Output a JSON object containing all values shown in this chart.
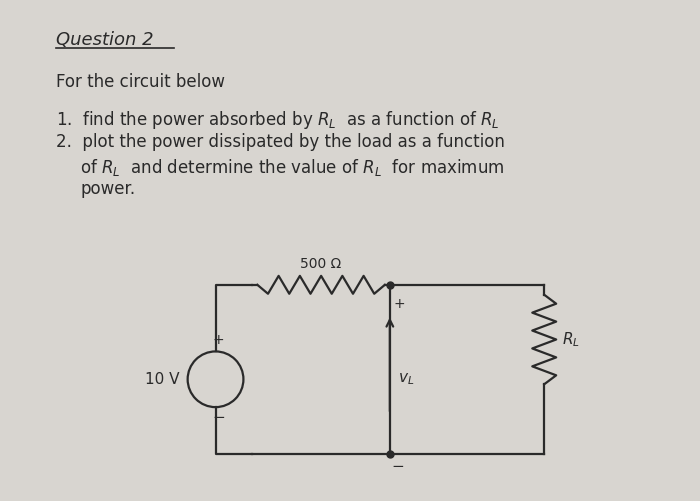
{
  "bg_color": "#d8d5d0",
  "inner_bg": "#e8e6e2",
  "title": "Question 2",
  "line1": "For the circuit below",
  "text_color": "#2a2a2a",
  "circuit_color": "#2a2a2a",
  "resistor_label": "500 Ω",
  "voltage_label": "10 V",
  "font_size_title": 13,
  "font_size_body": 12,
  "font_size_circuit": 11
}
